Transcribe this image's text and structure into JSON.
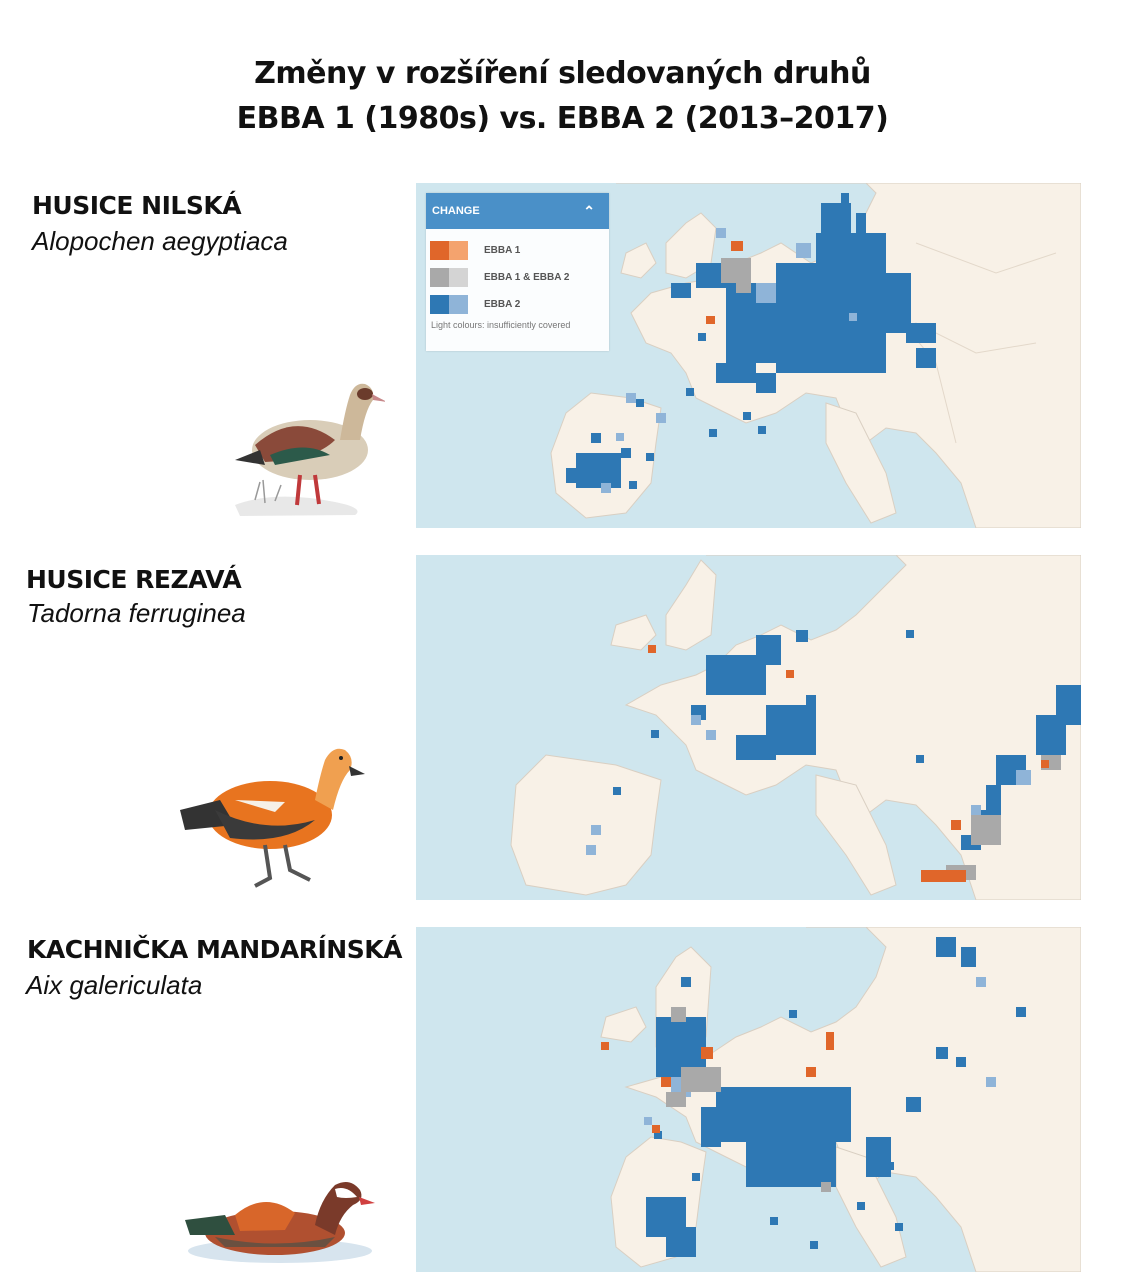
{
  "title_line1": "Změny v rozšíření sledovaných druhů",
  "title_line2": "EBBA 1 (1980s) vs. EBBA 2 (2013–2017)",
  "legend": {
    "header": "CHANGE",
    "items": [
      {
        "label": "EBBA 1",
        "dark": "#e0662a",
        "light": "#f4a36e"
      },
      {
        "label": "EBBA 1 & EBBA 2",
        "dark": "#a9a9a9",
        "light": "#d4d4d4"
      },
      {
        "label": "EBBA 2",
        "dark": "#2e78b4",
        "light": "#8fb4d8"
      }
    ],
    "note": "Light colours: insufficiently covered"
  },
  "species": [
    {
      "common": "HUSICE NILSKÁ",
      "latin": "Alopochen aegyptiaca"
    },
    {
      "common": "HUSICE REZAVÁ",
      "latin": "Tadorna ferruginea"
    },
    {
      "common": "KACHNIČKA MANDARÍNSKÁ",
      "latin": "Aix galericulata"
    }
  ],
  "colors": {
    "sea": "#cfe6ee",
    "land": "#f8f1e7",
    "border": "#d9cfc2",
    "ebba1": "#e0662a",
    "both": "#a9a9a9",
    "ebba2": "#2e78b4",
    "ebba2_light": "#8fb4d8"
  }
}
